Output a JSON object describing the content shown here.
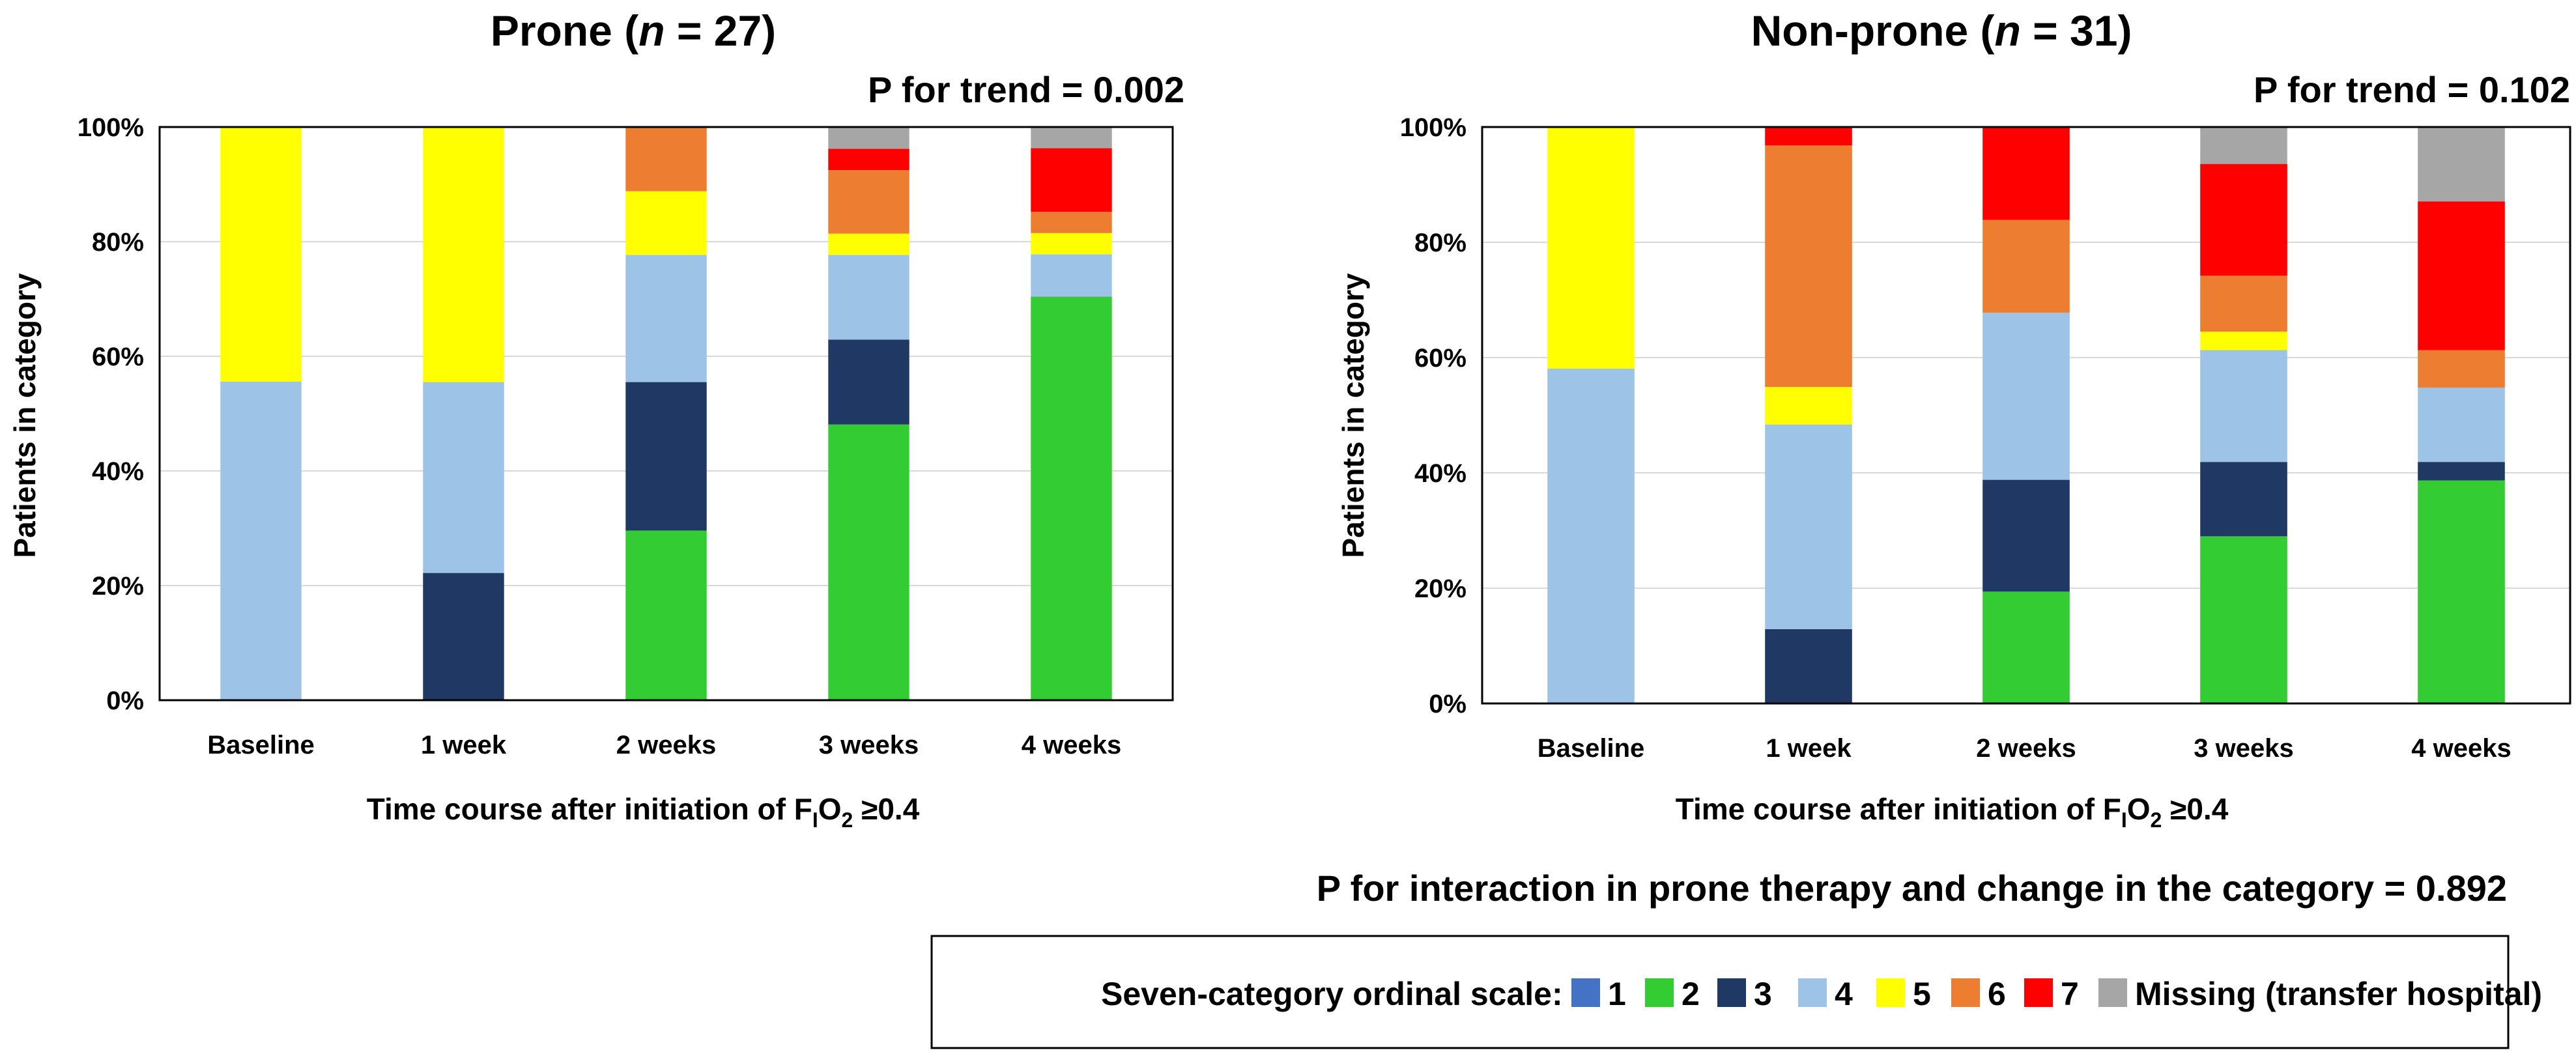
{
  "chart_data": [
    {
      "type": "bar",
      "stacked": true,
      "title": "Prone (n = 27)",
      "title_parts": {
        "pre": "Prone (",
        "italic": "n",
        "post": " = 27)"
      },
      "p_trend": "P for trend = 0.002",
      "xlabel": "Time course after initiation of FIO2 ≥0.4",
      "xlabel_parts": {
        "pre": "Time course after initiation of F",
        "sub1": "I",
        "mid": "O",
        "sub2": "2",
        "post": " ≥0.4"
      },
      "ylabel": "Patients in category",
      "ytick_labels": [
        "0%",
        "20%",
        "40%",
        "60%",
        "80%",
        "100%"
      ],
      "ylim": [
        0,
        100
      ],
      "categories": [
        "Baseline",
        "1 week",
        "2 weeks",
        "3 weeks",
        "4 weeks"
      ],
      "series": [
        {
          "name": "1",
          "color": "#4472C4",
          "values": [
            0,
            0,
            0,
            0,
            0
          ]
        },
        {
          "name": "2",
          "color": "#33CC33",
          "values": [
            0,
            0,
            29.6,
            48.1,
            70.4
          ]
        },
        {
          "name": "3",
          "color": "#1F3864",
          "values": [
            0,
            22.2,
            25.9,
            14.8,
            0
          ]
        },
        {
          "name": "4",
          "color": "#9DC3E6",
          "values": [
            55.6,
            33.3,
            22.2,
            14.8,
            7.4
          ]
        },
        {
          "name": "5",
          "color": "#FFFF00",
          "values": [
            44.4,
            44.4,
            11.1,
            3.7,
            3.7
          ]
        },
        {
          "name": "6",
          "color": "#ED7D31",
          "values": [
            0,
            0,
            11.1,
            11.1,
            3.7
          ]
        },
        {
          "name": "7",
          "color": "#FF0000",
          "values": [
            0,
            0,
            0,
            3.7,
            11.1
          ]
        },
        {
          "name": "Missing (transfer hospital)",
          "color": "#A6A6A6",
          "values": [
            0,
            0,
            0,
            3.7,
            3.7
          ]
        }
      ]
    },
    {
      "type": "bar",
      "stacked": true,
      "title": "Non-prone (n = 31)",
      "title_parts": {
        "pre": "Non-prone (",
        "italic": "n",
        "post": " = 31)"
      },
      "p_trend": "P for trend = 0.102",
      "xlabel": "Time course after initiation of FIO2 ≥0.4",
      "xlabel_parts": {
        "pre": "Time course after initiation of F",
        "sub1": "I",
        "mid": "O",
        "sub2": "2",
        "post": " ≥0.4"
      },
      "ylabel": "Patients in category",
      "ytick_labels": [
        "0%",
        "20%",
        "40%",
        "60%",
        "80%",
        "100%"
      ],
      "ylim": [
        0,
        100
      ],
      "categories": [
        "Baseline",
        "1 week",
        "2 weeks",
        "3 weeks",
        "4 weeks"
      ],
      "series": [
        {
          "name": "1",
          "color": "#4472C4",
          "values": [
            0,
            0,
            0,
            0,
            0
          ]
        },
        {
          "name": "2",
          "color": "#33CC33",
          "values": [
            0,
            0,
            19.4,
            29.0,
            38.7
          ]
        },
        {
          "name": "3",
          "color": "#1F3864",
          "values": [
            0,
            12.9,
            19.4,
            12.9,
            3.2
          ]
        },
        {
          "name": "4",
          "color": "#9DC3E6",
          "values": [
            58.1,
            35.5,
            29.0,
            19.4,
            12.9
          ]
        },
        {
          "name": "5",
          "color": "#FFFF00",
          "values": [
            41.9,
            6.5,
            0,
            3.2,
            0
          ]
        },
        {
          "name": "6",
          "color": "#ED7D31",
          "values": [
            0,
            41.9,
            16.1,
            9.7,
            6.5
          ]
        },
        {
          "name": "7",
          "color": "#FF0000",
          "values": [
            0,
            3.2,
            16.1,
            19.4,
            25.8
          ]
        },
        {
          "name": "Missing (transfer hospital)",
          "color": "#A6A6A6",
          "values": [
            0,
            0,
            0,
            6.5,
            12.9
          ]
        }
      ]
    }
  ],
  "interaction_text": "P for interaction in prone therapy and change in the category = 0.892",
  "legend": {
    "title": "Seven-category ordinal scale:",
    "items": [
      {
        "label": "1",
        "color": "#4472C4"
      },
      {
        "label": "2",
        "color": "#33CC33"
      },
      {
        "label": "3",
        "color": "#1F3864"
      },
      {
        "label": "4",
        "color": "#9DC3E6"
      },
      {
        "label": "5",
        "color": "#FFFF00"
      },
      {
        "label": "6",
        "color": "#ED7D31"
      },
      {
        "label": "7",
        "color": "#FF0000"
      },
      {
        "label": "Missing (transfer hospital)",
        "color": "#A6A6A6"
      }
    ]
  }
}
